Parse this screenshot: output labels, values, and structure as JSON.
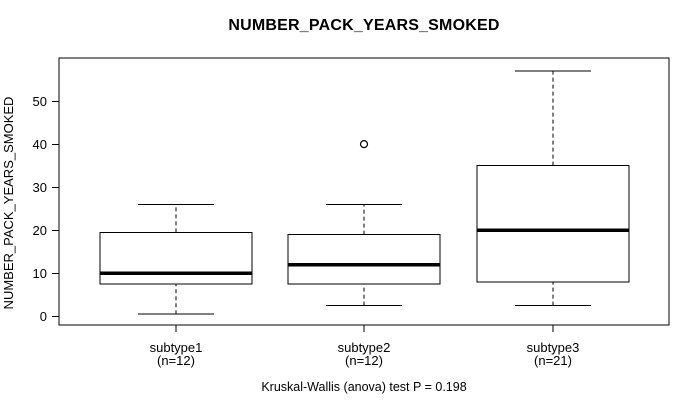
{
  "title": "NUMBER_PACK_YEARS_SMOKED",
  "caption": "Kruskal-Wallis (anova) test P = 0.198",
  "colors": {
    "foreground": "#000000",
    "background": "#ffffff",
    "box_fill": "#ffffff"
  },
  "chart_data": {
    "type": "boxplot",
    "title": "NUMBER_PACK_YEARS_SMOKED",
    "ylabel": "NUMBER_PACK_YEARS_SMOKED",
    "xlabel": "",
    "ylim": [
      -2,
      60
    ],
    "y_ticks": [
      0,
      10,
      20,
      30,
      40,
      50
    ],
    "grid": false,
    "legend": false,
    "annotation": "Kruskal-Wallis (anova) test P = 0.198",
    "groups": [
      {
        "label": "subtype1",
        "sublabel": "(n=12)",
        "n": 12,
        "whisker_low": 0.5,
        "q1": 7.5,
        "median": 10,
        "q3": 19.5,
        "whisker_high": 26,
        "outliers": []
      },
      {
        "label": "subtype2",
        "sublabel": "(n=12)",
        "n": 12,
        "whisker_low": 2.5,
        "q1": 7.5,
        "median": 12,
        "q3": 19,
        "whisker_high": 26,
        "outliers": [
          40
        ]
      },
      {
        "label": "subtype3",
        "sublabel": "(n=21)",
        "n": 21,
        "whisker_low": 2.5,
        "q1": 8,
        "median": 20,
        "q3": 35,
        "whisker_high": 57,
        "outliers": []
      }
    ]
  }
}
